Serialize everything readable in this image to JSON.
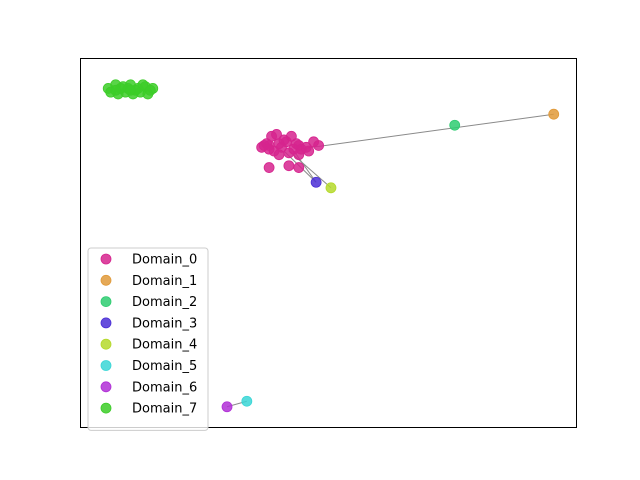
{
  "chart_data": {
    "type": "scatter",
    "title": "",
    "xlabel": "",
    "ylabel": "",
    "axes_ticks": false,
    "grid": false,
    "legend_placement": "lower-left",
    "xlim": [
      0,
      100
    ],
    "ylim": [
      0,
      100
    ],
    "series": [
      {
        "name": "Domain_0",
        "color": "#d6248e",
        "points": [
          [
            38.0,
            76.5
          ],
          [
            40.5,
            76.0
          ],
          [
            43.0,
            75.5
          ],
          [
            42.0,
            74.5
          ],
          [
            44.5,
            75.5
          ],
          [
            46.0,
            75.0
          ],
          [
            38.5,
            79.0
          ],
          [
            41.0,
            78.0
          ],
          [
            37.5,
            77.0
          ],
          [
            39.0,
            75.0
          ],
          [
            44.0,
            76.5
          ],
          [
            45.5,
            76.0
          ],
          [
            37.0,
            76.5
          ],
          [
            41.5,
            77.5
          ],
          [
            38.0,
            75.5
          ],
          [
            43.5,
            77.0
          ],
          [
            40.0,
            74.0
          ],
          [
            42.5,
            79.0
          ],
          [
            39.5,
            79.5
          ],
          [
            44.0,
            74.0
          ],
          [
            47.0,
            77.5
          ],
          [
            48.0,
            76.5
          ],
          [
            36.5,
            76.0
          ],
          [
            40.0,
            77.0
          ],
          [
            38.0,
            70.5
          ],
          [
            42.0,
            71.0
          ],
          [
            44.0,
            70.5
          ]
        ]
      },
      {
        "name": "Domain_1",
        "color": "#e09a3a",
        "points": [
          [
            95.5,
            85.0
          ]
        ]
      },
      {
        "name": "Domain_2",
        "color": "#2ecc71",
        "points": [
          [
            75.5,
            82.0
          ]
        ]
      },
      {
        "name": "Domain_3",
        "color": "#4b2fd6",
        "points": [
          [
            47.5,
            66.5
          ]
        ]
      },
      {
        "name": "Domain_4",
        "color": "#b5d92b",
        "points": [
          [
            50.5,
            65.0
          ]
        ]
      },
      {
        "name": "Domain_5",
        "color": "#3ad6d6",
        "points": [
          [
            33.5,
            7.0
          ]
        ]
      },
      {
        "name": "Domain_6",
        "color": "#b02fd6",
        "points": [
          [
            29.5,
            5.5
          ]
        ]
      },
      {
        "name": "Domain_7",
        "color": "#3ccc28",
        "points": [
          [
            5.5,
            92.0
          ],
          [
            7.0,
            93.0
          ],
          [
            8.5,
            92.5
          ],
          [
            10.0,
            93.0
          ],
          [
            11.5,
            92.0
          ],
          [
            13.0,
            92.5
          ],
          [
            14.5,
            92.0
          ],
          [
            6.0,
            91.0
          ],
          [
            7.5,
            90.5
          ],
          [
            9.0,
            91.0
          ],
          [
            10.5,
            90.5
          ],
          [
            12.0,
            91.0
          ],
          [
            13.5,
            90.5
          ],
          [
            8.0,
            92.0
          ],
          [
            11.0,
            91.5
          ],
          [
            9.5,
            92.0
          ],
          [
            12.5,
            93.0
          ],
          [
            14.0,
            91.5
          ],
          [
            7.0,
            91.5
          ],
          [
            10.0,
            91.5
          ]
        ]
      }
    ],
    "edges": [
      {
        "from": [
          44.0,
          75.5
        ],
        "to": [
          95.5,
          85.0
        ]
      },
      {
        "from": [
          42.0,
          75.0
        ],
        "to": [
          50.5,
          65.0
        ]
      },
      {
        "from": [
          41.0,
          75.0
        ],
        "to": [
          47.5,
          66.5
        ]
      },
      {
        "from": [
          43.0,
          75.0
        ],
        "to": [
          47.5,
          66.5
        ]
      },
      {
        "from": [
          29.5,
          5.5
        ],
        "to": [
          33.5,
          7.0
        ]
      }
    ]
  }
}
